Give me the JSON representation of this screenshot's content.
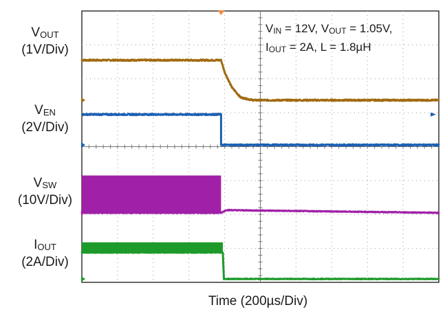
{
  "chart_data": {
    "type": "line",
    "title": "",
    "xlabel": "Time (200µs/Div)",
    "x_divisions": 10,
    "y_divisions": 8,
    "annotation": {
      "line1": [
        {
          "text": "V"
        },
        {
          "text": "IN",
          "sub": true
        },
        {
          "text": " = 12V, V"
        },
        {
          "text": "OUT",
          "sub": true
        },
        {
          "text": " = 1.05V,"
        }
      ],
      "line2": [
        {
          "text": "I"
        },
        {
          "text": "OUT",
          "sub": true
        },
        {
          "text": " = 2A, L = 1.8µH"
        }
      ]
    },
    "series": [
      {
        "name_main": "V",
        "name_sub": "OUT",
        "scale": "(1V/Div)",
        "color": "#a06a10",
        "points": [
          [
            0,
            6.55
          ],
          [
            3.9,
            6.55
          ],
          [
            4.0,
            6.2
          ],
          [
            4.2,
            5.75
          ],
          [
            4.45,
            5.45
          ],
          [
            4.8,
            5.37
          ],
          [
            10,
            5.37
          ]
        ],
        "noise": 0.02
      },
      {
        "name_main": "V",
        "name_sub": "EN",
        "scale": "(2V/Div)",
        "color": "#1c5fb3",
        "points": [
          [
            0,
            4.95
          ],
          [
            3.9,
            4.95
          ],
          [
            3.9,
            4.05
          ],
          [
            10,
            4.05
          ]
        ],
        "noise": 0.02
      },
      {
        "name_main": "V",
        "name_sub": "SW",
        "scale": "(10V/Div)",
        "color": "#a020a8",
        "points": [
          [
            0,
            2.05
          ],
          [
            3.9,
            2.05
          ],
          [
            4.05,
            2.13
          ],
          [
            10,
            2.05
          ]
        ],
        "switching": {
          "x_end": 3.9,
          "high": 3.15,
          "low": 2.05
        },
        "noise": 0.01
      },
      {
        "name_main": "I",
        "name_sub": "OUT",
        "scale": "(2A/Div)",
        "color": "#1d9a2a",
        "points": [
          [
            0,
            0.88
          ],
          [
            3.95,
            0.88
          ],
          [
            3.98,
            0.1
          ],
          [
            10,
            0.1
          ]
        ],
        "ripple": {
          "x_end": 3.95,
          "high": 1.18,
          "low": 0.9
        },
        "noise": 0.01
      }
    ]
  }
}
